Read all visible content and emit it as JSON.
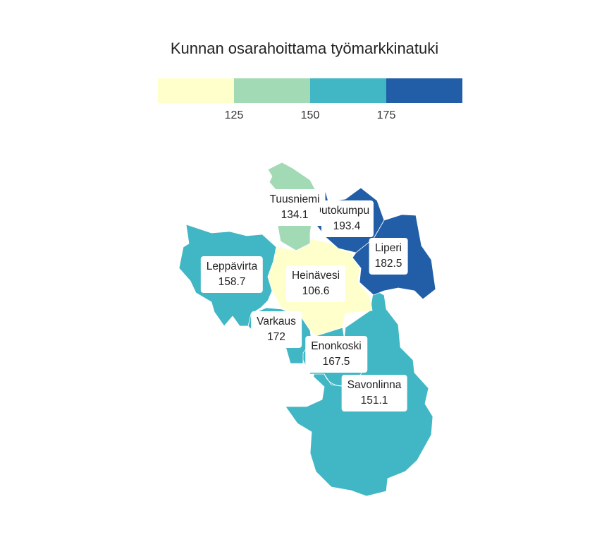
{
  "title": "Kunnan osarahoittama työmarkkinatuki",
  "legend": {
    "colors": [
      "#ffffcc",
      "#a1dab4",
      "#41b6c4",
      "#225ea8"
    ],
    "ticks": [
      "125",
      "150",
      "175"
    ]
  },
  "municipalities": [
    {
      "name": "Tuusniemi",
      "value": "134.1",
      "color": "#a1dab4"
    },
    {
      "name": "Outokumpu",
      "value": "193.4",
      "color": "#225ea8"
    },
    {
      "name": "Liperi",
      "value": "182.5",
      "color": "#225ea8"
    },
    {
      "name": "Leppävirta",
      "value": "158.7",
      "color": "#41b6c4"
    },
    {
      "name": "Heinävesi",
      "value": "106.6",
      "color": "#ffffcc"
    },
    {
      "name": "Varkaus",
      "value": "172",
      "color": "#41b6c4"
    },
    {
      "name": "Enonkoski",
      "value": "167.5",
      "color": "#41b6c4"
    },
    {
      "name": "Savonlinna",
      "value": "151.1",
      "color": "#41b6c4"
    }
  ]
}
